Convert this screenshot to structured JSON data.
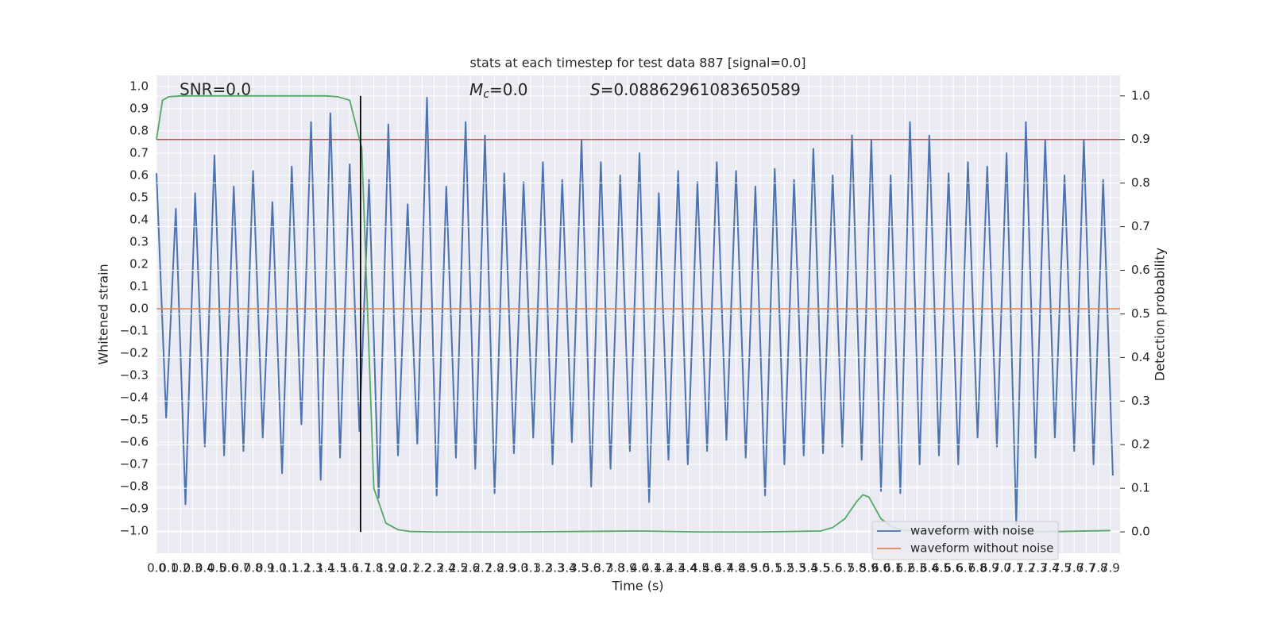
{
  "chart_data": {
    "type": "line",
    "title": "stats at each timestep for test data 887 [signal=0.0]",
    "x_label": "Time (s)",
    "y_label": "Whitened strain",
    "y2_label": "Detection probability",
    "annotations": {
      "snr": "SNR=0.0",
      "mc": {
        "symbol": "M",
        "subscript": "c",
        "text": "=0.0"
      },
      "s": {
        "symbol": "S",
        "text": "=0.08862961083650589"
      }
    },
    "grid": true,
    "legend_loc": "lower right",
    "xlim": [
      0,
      7.98
    ],
    "ylim": [
      -1.1,
      1.05
    ],
    "y2lim": [
      -0.049,
      1.047
    ],
    "xticks": [
      {
        "value": 0,
        "label": "0.0"
      },
      0.1,
      0.2,
      0.3,
      0.4,
      0.5,
      0.6,
      0.7,
      0.8,
      0.9,
      {
        "value": 1,
        "label": "1.0"
      },
      1.1,
      1.2,
      1.3,
      1.4,
      1.5,
      1.6,
      1.7,
      1.8,
      1.9,
      {
        "value": 2,
        "label": "2.0"
      },
      2.1,
      2.2,
      2.3,
      2.4,
      2.5,
      2.6,
      2.7,
      2.8,
      2.9,
      {
        "value": 3,
        "label": "3.0"
      },
      3.1,
      3.2,
      3.3,
      3.4,
      3.5,
      3.6,
      3.7,
      3.8,
      3.9,
      {
        "value": 4,
        "label": "4.0"
      },
      4.1,
      4.2,
      4.3,
      4.4,
      4.5,
      4.6,
      4.7,
      4.8,
      4.9,
      {
        "value": 5,
        "label": "5.0"
      },
      5.1,
      5.2,
      5.3,
      5.4,
      5.5,
      5.6,
      5.7,
      5.8,
      5.9,
      {
        "value": 6,
        "label": "6.0"
      },
      6.1,
      6.2,
      6.3,
      6.4,
      6.5,
      6.6,
      6.7,
      6.8,
      6.9,
      {
        "value": 7,
        "label": "7.0"
      },
      7.1,
      7.2,
      7.3,
      7.4,
      7.5,
      7.6,
      7.7,
      7.8,
      7.9
    ],
    "yticks": [
      {
        "value": -1,
        "label": "−1.0"
      },
      {
        "value": -0.9,
        "label": "−0.9"
      },
      {
        "value": -0.8,
        "label": "−0.8"
      },
      {
        "value": -0.7,
        "label": "−0.7"
      },
      {
        "value": -0.6,
        "label": "−0.6"
      },
      {
        "value": -0.5,
        "label": "−0.5"
      },
      {
        "value": -0.4,
        "label": "−0.4"
      },
      {
        "value": -0.3,
        "label": "−0.3"
      },
      {
        "value": -0.2,
        "label": "−0.2"
      },
      {
        "value": -0.1,
        "label": "−0.1"
      },
      {
        "value": 0,
        "label": "0.0"
      },
      0.1,
      0.2,
      0.3,
      0.4,
      0.5,
      0.6,
      0.7,
      0.8,
      0.9,
      {
        "value": 1,
        "label": "1.0"
      }
    ],
    "y2ticks": [
      {
        "value": 0,
        "label": "0.0"
      },
      0.1,
      0.2,
      0.3,
      0.4,
      0.5,
      0.6,
      0.7,
      0.8,
      0.9,
      {
        "value": 1,
        "label": "1.0"
      }
    ],
    "series": [
      {
        "name": "waveform with noise",
        "color": "#4c72b0",
        "x": [
          0,
          0.08,
          0.16,
          0.24,
          0.32,
          0.4,
          0.48,
          0.56,
          0.64,
          0.72,
          0.8,
          0.88,
          0.96,
          1.04,
          1.12,
          1.2,
          1.28,
          1.36,
          1.44,
          1.52,
          1.6,
          1.68,
          1.76,
          1.84,
          1.92,
          2,
          2.08,
          2.16,
          2.24,
          2.32,
          2.4,
          2.48,
          2.56,
          2.64,
          2.72,
          2.8,
          2.88,
          2.96,
          3.04,
          3.12,
          3.2,
          3.28,
          3.36,
          3.44,
          3.52,
          3.6,
          3.68,
          3.76,
          3.84,
          3.92,
          4,
          4.08,
          4.16,
          4.24,
          4.32,
          4.4,
          4.48,
          4.56,
          4.64,
          4.72,
          4.8,
          4.88,
          4.96,
          5.04,
          5.12,
          5.2,
          5.28,
          5.36,
          5.44,
          5.52,
          5.6,
          5.68,
          5.76,
          5.84,
          5.92,
          6,
          6.08,
          6.16,
          6.24,
          6.32,
          6.4,
          6.48,
          6.56,
          6.64,
          6.72,
          6.8,
          6.88,
          6.96,
          7.04,
          7.12,
          7.2,
          7.28,
          7.36,
          7.44,
          7.52,
          7.6,
          7.68,
          7.76,
          7.84,
          7.92
        ],
        "values": [
          0.61,
          -0.49,
          0.45,
          -0.88,
          0.52,
          -0.62,
          0.69,
          -0.66,
          0.55,
          -0.64,
          0.62,
          -0.58,
          0.48,
          -0.74,
          0.64,
          -0.52,
          0.84,
          -0.77,
          0.88,
          -0.67,
          0.65,
          -0.55,
          0.58,
          -0.85,
          0.83,
          -0.66,
          0.47,
          -0.61,
          0.95,
          -0.84,
          0.55,
          -0.67,
          0.84,
          -0.72,
          0.78,
          -0.83,
          0.61,
          -0.65,
          0.57,
          -0.58,
          0.66,
          -0.7,
          0.58,
          -0.6,
          0.76,
          -0.8,
          0.66,
          -0.72,
          0.6,
          -0.64,
          0.7,
          -0.87,
          0.52,
          -0.68,
          0.62,
          -0.7,
          0.57,
          -0.64,
          0.66,
          -0.59,
          0.62,
          -0.67,
          0.55,
          -0.84,
          0.63,
          -0.7,
          0.58,
          -0.66,
          0.72,
          -0.65,
          0.6,
          -0.62,
          0.78,
          -0.68,
          0.76,
          -0.82,
          0.6,
          -0.83,
          0.84,
          -0.7,
          0.78,
          -0.66,
          0.61,
          -0.7,
          0.66,
          -0.58,
          0.64,
          -0.62,
          0.7,
          -0.97,
          0.84,
          -0.67,
          0.76,
          -0.58,
          0.6,
          -0.64,
          0.76,
          -0.7,
          0.58,
          -0.75
        ]
      },
      {
        "name": "waveform without noise",
        "color": "#dd8452",
        "x": [
          0,
          7.98
        ],
        "values": [
          0,
          0
        ]
      }
    ],
    "probability": {
      "color": "#55a868",
      "axis": "y2",
      "x": [
        0,
        0.05,
        0.1,
        0.2,
        0.4,
        0.8,
        1.2,
        1.4,
        1.5,
        1.6,
        1.7,
        1.8,
        1.9,
        2.0,
        2.1,
        2.3,
        3,
        4,
        4.5,
        5,
        5.5,
        5.6,
        5.7,
        5.8,
        5.85,
        5.9,
        6,
        6.1,
        6.2,
        6.5,
        7,
        7.5,
        7.9
      ],
      "values": [
        0.9,
        0.99,
        0.998,
        1,
        1,
        1,
        1,
        1,
        0.998,
        0.99,
        0.88,
        0.1,
        0.02,
        0.005,
        0.001,
        0,
        0,
        0.002,
        0,
        0,
        0.002,
        0.01,
        0.03,
        0.07,
        0.085,
        0.08,
        0.03,
        0.01,
        0.003,
        0.001,
        0,
        0.001,
        0.003
      ]
    },
    "threshold": {
      "value": 0.9,
      "color": "#c44e52",
      "axis": "y2"
    },
    "marker": {
      "x": 1.69,
      "y2_range": [
        0,
        1
      ],
      "color": "#000000"
    }
  }
}
